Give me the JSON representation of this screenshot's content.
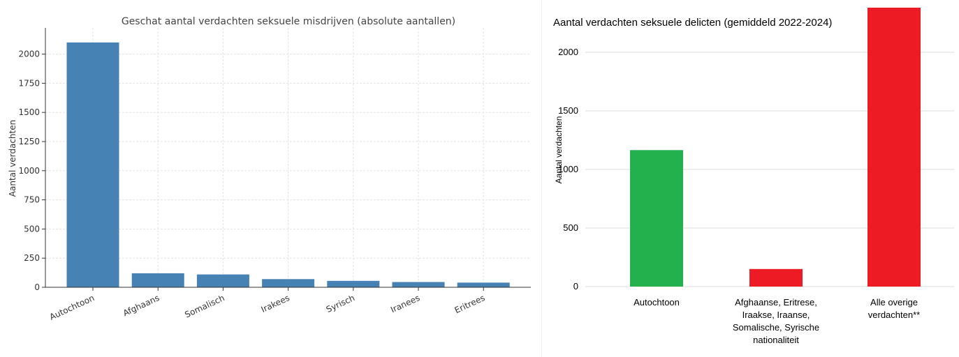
{
  "chart_data": [
    {
      "type": "bar",
      "title": "Geschat aantal verdachten seksuele misdrijven (absolute aantallen)",
      "xlabel": "",
      "ylabel": "Aantal verdachten",
      "categories": [
        "Autochtoon",
        "Afghaans",
        "Somalisch",
        "Irakees",
        "Syrisch",
        "Iranees",
        "Eritrees"
      ],
      "values": [
        2100,
        120,
        110,
        70,
        55,
        45,
        40
      ],
      "ylim": [
        0,
        2225
      ],
      "yticks": [
        "0",
        "250",
        "500",
        "750",
        "1000",
        "1250",
        "1500",
        "1750",
        "2000"
      ],
      "grid": true,
      "bar_color": "#4682b4"
    },
    {
      "type": "bar",
      "title": "Aantal verdachten seksuele delicten (gemiddeld 2022-2024)",
      "xlabel": "",
      "ylabel": "Aantal verdachten",
      "categories": [
        [
          "Autochtoon"
        ],
        [
          "Afghaanse, Eritrese,",
          "Iraakse, Iraanse,",
          "Somalische, Syrische",
          "nationaliteit"
        ],
        [
          "Alle overige",
          "verdachten**"
        ]
      ],
      "values": [
        1165,
        150,
        2390
      ],
      "colors": [
        "#22b14c",
        "#ed1c24",
        "#ed1c24"
      ],
      "ylim": [
        0,
        2390
      ],
      "yticks": [
        "0",
        "500",
        "1000",
        "1500",
        "2000"
      ],
      "grid": true
    }
  ]
}
